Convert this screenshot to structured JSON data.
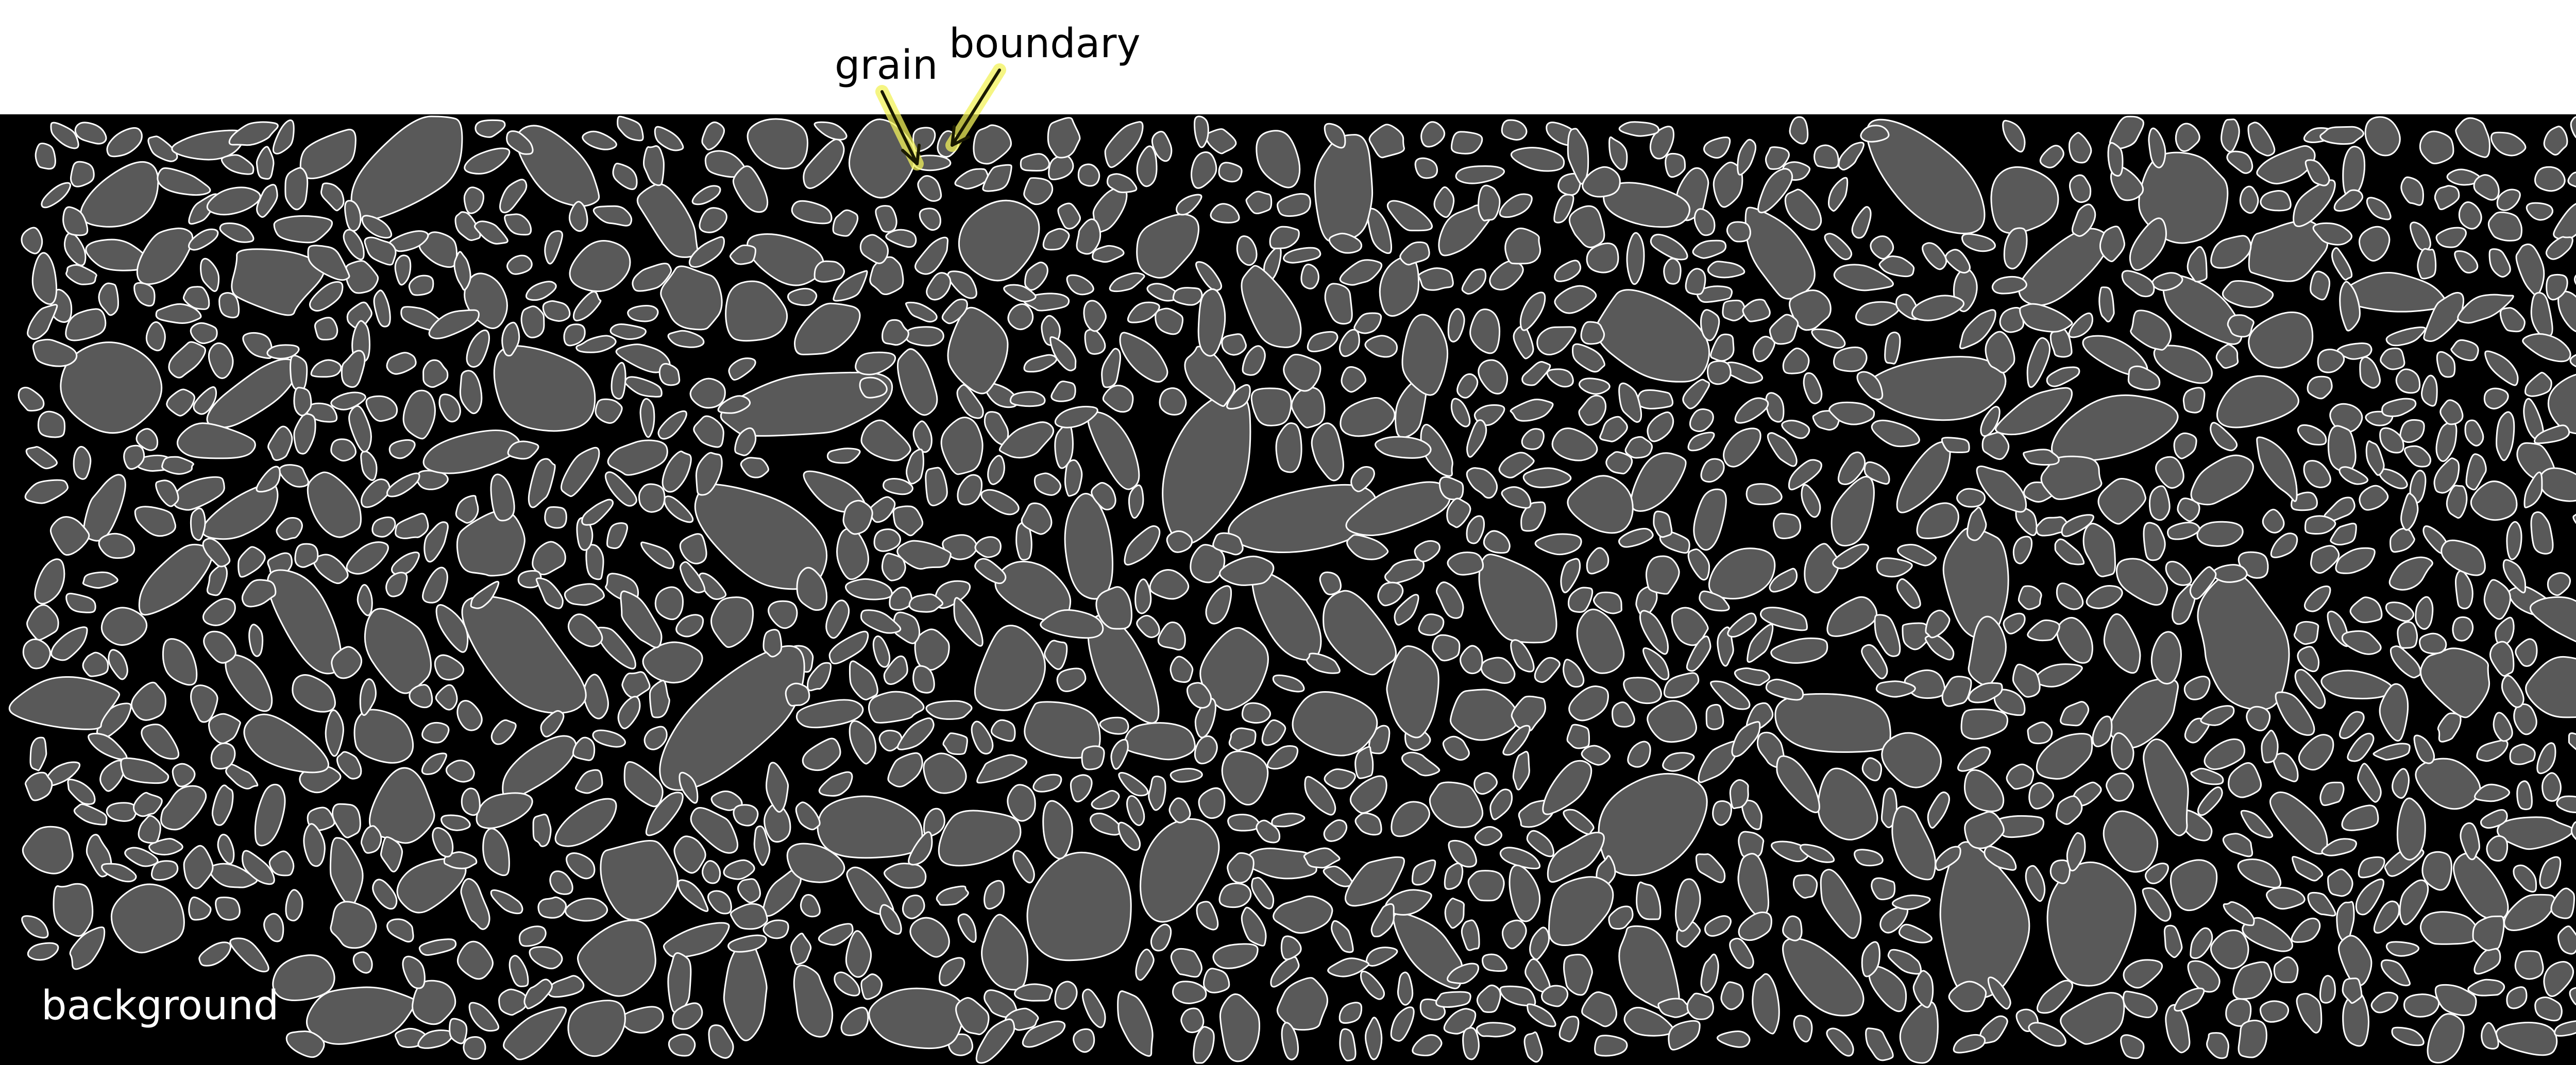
{
  "labels": {
    "grain": "grain",
    "boundary": "boundary",
    "background": "background"
  },
  "colors": {
    "grain_fill": "#595959",
    "boundary_stroke": "#ffffff",
    "background": "#000000",
    "callout_glow": "#f2f25a",
    "callout_line": "#1a1a00"
  }
}
